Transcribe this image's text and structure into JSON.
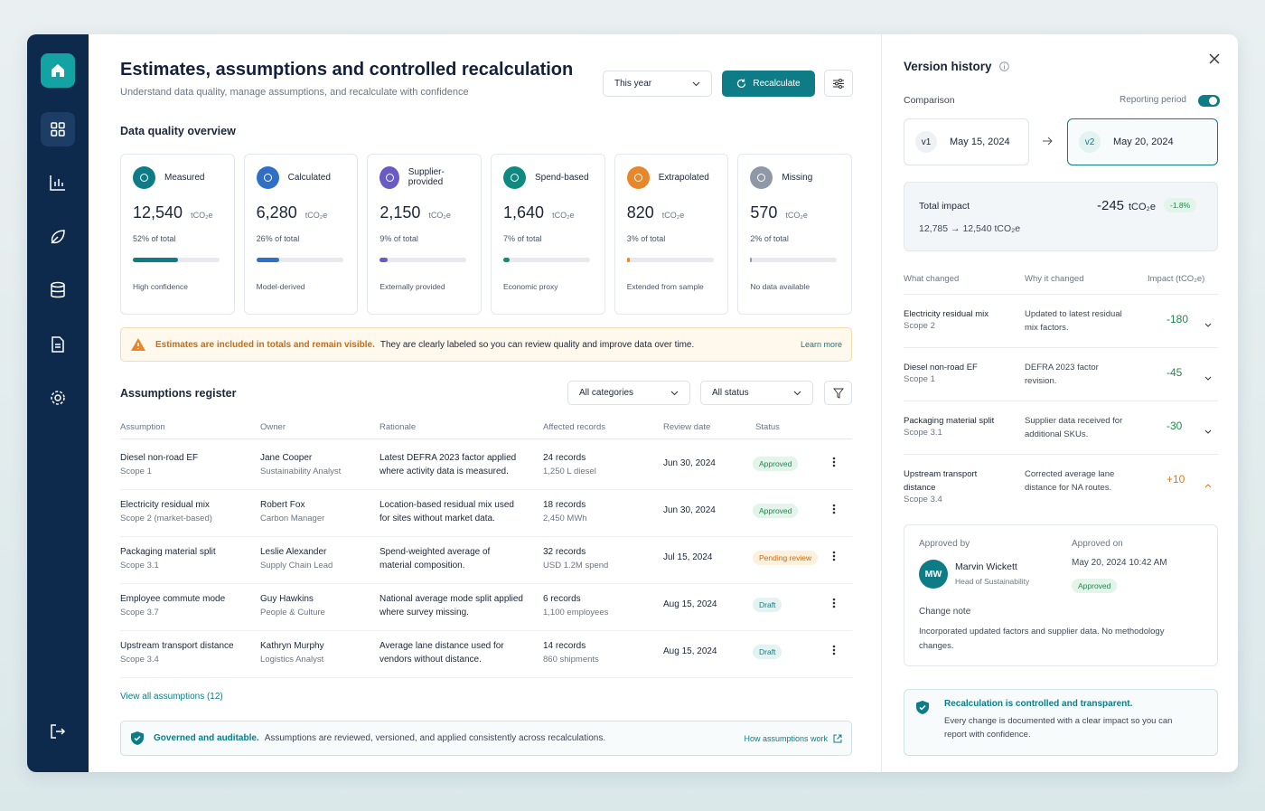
{
  "header": {
    "title": "Estimates, assumptions and controlled recalculation",
    "subtitle": "Understand data quality, manage assumptions, and recalculate with confidence",
    "period_select": "This year",
    "recalculate_button": "Recalculate"
  },
  "data_quality": {
    "title": "Data quality overview",
    "cards": [
      {
        "label": "Measured",
        "value": "12,540",
        "unit": "tCO₂e",
        "share": 52,
        "share_label": "52% of total",
        "note": "High confidence",
        "color": "#0e7c86"
      },
      {
        "label": "Calculated",
        "value": "6,280",
        "unit": "tCO₂e",
        "share": 26,
        "share_label": "26% of total",
        "note": "Model-derived",
        "color": "#2f6fc6"
      },
      {
        "label": "Supplier-provided",
        "value": "2,150",
        "unit": "tCO₂e",
        "share": 9,
        "share_label": "9% of total",
        "note": "Externally provided",
        "color": "#6a5bc4"
      },
      {
        "label": "Spend-based",
        "value": "1,640",
        "unit": "tCO₂e",
        "share": 7,
        "share_label": "7% of total",
        "note": "Economic proxy",
        "color": "#0f8a80"
      },
      {
        "label": "Extrapolated",
        "value": "820",
        "unit": "tCO₂e",
        "share": 3,
        "share_label": "3% of total",
        "note": "Extended from sample",
        "color": "#e8862a"
      },
      {
        "label": "Missing",
        "value": "570",
        "unit": "tCO₂e",
        "share": 2,
        "share_label": "2% of total",
        "note": "No data available",
        "color": "#8e98a6"
      }
    ]
  },
  "notice": {
    "highlight": "Estimates are included in totals and remain visible.",
    "text": "They are clearly labeled so you can review quality and improve data over time.",
    "link": "Learn more"
  },
  "assumptions": {
    "title": "Assumptions register",
    "filters": [
      "All categories",
      "All status"
    ],
    "columns": [
      "Assumption",
      "Owner",
      "Rationale",
      "Affected records",
      "Review date",
      "Status"
    ],
    "rows": [
      {
        "assumption": "Diesel non-road EF",
        "scope": "Scope 1",
        "owner": "Jane Cooper",
        "role": "Sustainability Analyst",
        "rationale": "Latest DEFRA 2023 factor applied where activity data is measured.",
        "records": "24 records",
        "records_detail": "1,250 L diesel",
        "review_date": "Jun 30, 2024",
        "status": "Approved"
      },
      {
        "assumption": "Electricity residual mix",
        "scope": "Scope 2 (market-based)",
        "owner": "Robert Fox",
        "role": "Carbon Manager",
        "rationale": "Location-based residual mix used for sites without market data.",
        "records": "18 records",
        "records_detail": "2,450 MWh",
        "review_date": "Jun 30, 2024",
        "status": "Approved"
      },
      {
        "assumption": "Packaging material split",
        "scope": "Scope 3.1",
        "owner": "Leslie Alexander",
        "role": "Supply Chain Lead",
        "rationale": "Spend-weighted average of material composition.",
        "records": "32 records",
        "records_detail": "USD 1.2M spend",
        "review_date": "Jul 15, 2024",
        "status": "Pending review"
      },
      {
        "assumption": "Employee commute mode",
        "scope": "Scope 3.7",
        "owner": "Guy Hawkins",
        "role": "People & Culture",
        "rationale": "National average mode split applied where survey missing.",
        "records": "6 records",
        "records_detail": "1,100 employees",
        "review_date": "Aug 15, 2024",
        "status": "Draft"
      },
      {
        "assumption": "Upstream transport distance",
        "scope": "Scope 3.4",
        "owner": "Kathryn Murphy",
        "role": "Logistics Analyst",
        "rationale": "Average lane distance used for vendors without distance.",
        "records": "14 records",
        "records_detail": "860 shipments",
        "review_date": "Aug 15, 2024",
        "status": "Draft"
      }
    ],
    "view_all": "View all assumptions (12)"
  },
  "footer_notice": {
    "highlight": "Governed and auditable.",
    "text": "Assumptions are reviewed, versioned, and applied consistently across recalculations.",
    "link": "How assumptions work"
  },
  "version_history": {
    "title": "Version history",
    "comparison": "Comparison",
    "reporting_period": "Reporting period",
    "from": {
      "tag": "v1",
      "date": "May 15, 2024"
    },
    "to": {
      "tag": "v2",
      "date": "May 20, 2024"
    },
    "total": {
      "label": "Total impact",
      "value": "-245",
      "unit": "tCO₂e",
      "change": "-1.8%",
      "range": "12,785 → 12,540 tCO₂e"
    },
    "columns": [
      "What changed",
      "Why it changed",
      "Impact (tCO₂e)"
    ],
    "changes": [
      {
        "item": "Electricity residual mix",
        "scope": "Scope 2",
        "reason": "Updated to latest residual mix factors.",
        "impact": "-180"
      },
      {
        "item": "Diesel non-road EF",
        "scope": "Scope 1",
        "reason": "DEFRA 2023 factor revision.",
        "impact": "-45"
      },
      {
        "item": "Packaging material split",
        "scope": "Scope 3.1",
        "reason": "Supplier data received for additional SKUs.",
        "impact": "-30"
      },
      {
        "item": "Upstream transport distance",
        "scope": "Scope 3.4",
        "reason": "Corrected average lane distance for NA routes.",
        "impact": "+10"
      }
    ],
    "approval": {
      "approved_by_label": "Approved by",
      "initials": "MW",
      "name": "Marvin Wickett",
      "role": "Head of Sustainability",
      "approved_on_label": "Approved on",
      "approved_on": "May 20, 2024 10:42 AM",
      "status": "Approved",
      "note_label": "Change note",
      "note": "Incorporated updated factors and supplier data. No methodology changes."
    },
    "assurance": {
      "title": "Recalculation is controlled and transparent.",
      "text": "Every change is documented with a clear impact so you can report with confidence."
    }
  }
}
